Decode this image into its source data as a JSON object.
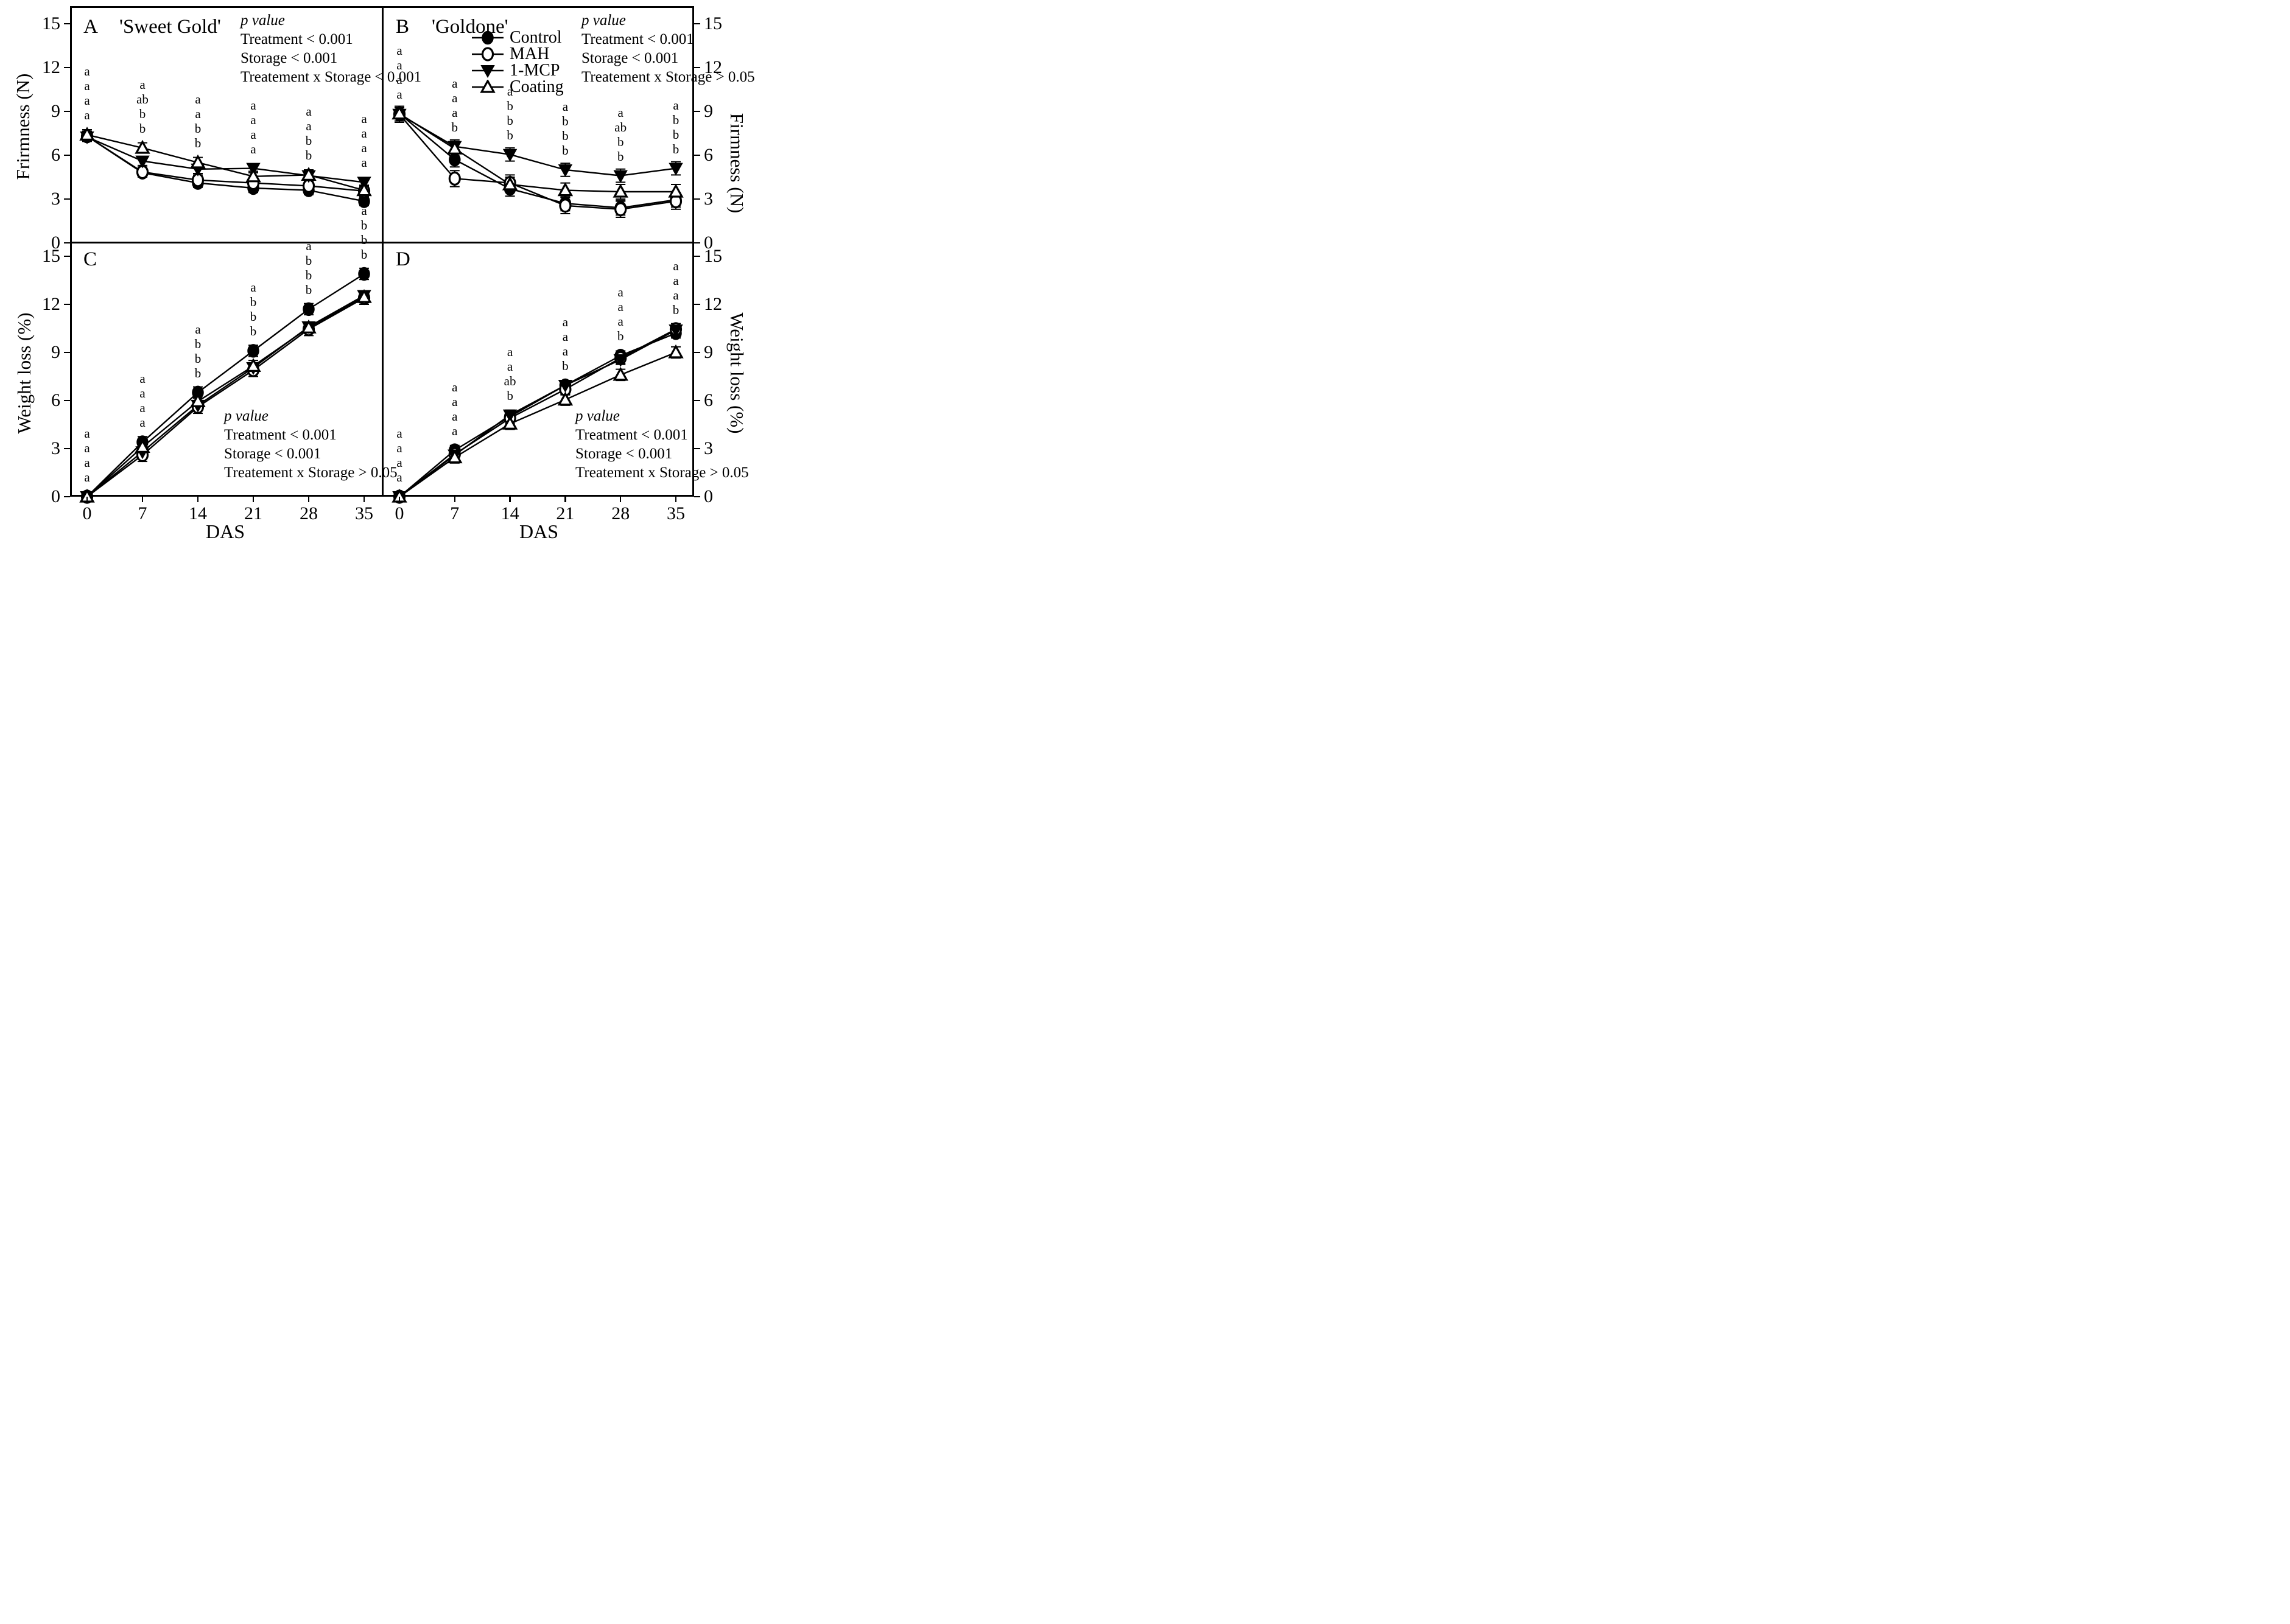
{
  "figure_colors": {
    "foreground": "#000000",
    "background": "#ffffff"
  },
  "axis_titles": {
    "left_top": "Frirmness (N)",
    "left_bottom": "Weight loss (%)",
    "right_top": "Firmness (N)",
    "right_bottom": "Weight loss (%)",
    "x_left": "DAS",
    "x_right": "DAS"
  },
  "legend": {
    "position": "top of panel B",
    "items": [
      {
        "label": "Control",
        "marker": "circle-filled"
      },
      {
        "label": "MAH",
        "marker": "circle-open"
      },
      {
        "label": "1-MCP",
        "marker": "triangle-down-filled"
      },
      {
        "label": "Coating",
        "marker": "triangle-up-open"
      }
    ]
  },
  "chart_data": [
    {
      "panel": "A",
      "title": "'Sweet Gold'",
      "type": "line",
      "xlabel": "DAS",
      "ylabel": "Frirmness (N)",
      "ylim": [
        0,
        15
      ],
      "yticks": [
        15,
        12,
        9,
        6,
        3,
        0
      ],
      "x": [
        0,
        7,
        14,
        21,
        28,
        35
      ],
      "grid": false,
      "series": [
        {
          "name": "Control",
          "marker": "circle-filled",
          "values": [
            7.3,
            4.8,
            4.1,
            3.75,
            3.6,
            2.85
          ],
          "err": 0.3
        },
        {
          "name": "MAH",
          "marker": "circle-open",
          "values": [
            7.3,
            4.85,
            4.3,
            4.1,
            3.9,
            3.55
          ],
          "err": 0.35
        },
        {
          "name": "1-MCP",
          "marker": "triangle-down-filled",
          "values": [
            7.25,
            5.6,
            5.05,
            5.1,
            4.6,
            4.15
          ],
          "err": 0.3
        },
        {
          "name": "Coating",
          "marker": "triangle-up-open",
          "values": [
            7.4,
            6.5,
            5.5,
            4.55,
            4.65,
            3.6
          ],
          "err": 0.35
        }
      ],
      "sig_letters": [
        [
          "a",
          "a",
          "a",
          "a"
        ],
        [
          "a",
          "ab",
          "b",
          "b"
        ],
        [
          "a",
          "a",
          "b",
          "b"
        ],
        [
          "a",
          "a",
          "a",
          "a"
        ],
        [
          "a",
          "a",
          "b",
          "b"
        ],
        [
          "a",
          "a",
          "a",
          "a"
        ]
      ],
      "p_block": {
        "heading": "p value",
        "lines": [
          "Treatment < 0.001",
          "Storage < 0.001",
          "Treatement x Storage  < 0.001"
        ]
      }
    },
    {
      "panel": "B",
      "title": "'Goldone'",
      "type": "line",
      "xlabel": "DAS",
      "ylabel": "Firmness (N)",
      "ylim": [
        0,
        15
      ],
      "yticks": [
        15,
        12,
        9,
        6,
        3,
        0
      ],
      "x": [
        0,
        7,
        14,
        21,
        28,
        35
      ],
      "grid": false,
      "series": [
        {
          "name": "Control",
          "marker": "circle-filled",
          "values": [
            8.85,
            5.7,
            3.7,
            2.7,
            2.4,
            2.95
          ],
          "err": 0.5
        },
        {
          "name": "MAH",
          "marker": "circle-open",
          "values": [
            8.8,
            4.4,
            4.1,
            2.55,
            2.3,
            2.85
          ],
          "err": 0.55
        },
        {
          "name": "1-MCP",
          "marker": "triangle-down-filled",
          "values": [
            8.8,
            6.6,
            6.05,
            5.0,
            4.6,
            5.1
          ],
          "err": 0.45
        },
        {
          "name": "Coating",
          "marker": "triangle-up-open",
          "values": [
            8.85,
            6.45,
            4.0,
            3.6,
            3.5,
            3.5
          ],
          "err": 0.5
        }
      ],
      "sig_letters": [
        [
          "a",
          "a",
          "a",
          "a"
        ],
        [
          "a",
          "a",
          "a",
          "b"
        ],
        [
          "a",
          "b",
          "b",
          "b"
        ],
        [
          "a",
          "b",
          "b",
          "b"
        ],
        [
          "a",
          "ab",
          "b",
          "b"
        ],
        [
          "a",
          "b",
          "b",
          "b"
        ]
      ],
      "p_block": {
        "heading": "p value",
        "lines": [
          "Treatment < 0.001",
          "Storage < 0.001",
          "Treatement x Storage > 0.05"
        ]
      }
    },
    {
      "panel": "C",
      "title": "",
      "type": "line",
      "xlabel": "DAS",
      "ylabel": "Weight loss (%)",
      "ylim": [
        0,
        15
      ],
      "yticks": [
        15,
        12,
        9,
        6,
        3,
        0
      ],
      "x": [
        0,
        7,
        14,
        21,
        28,
        35
      ],
      "grid": false,
      "series": [
        {
          "name": "Control",
          "marker": "circle-filled",
          "values": [
            0,
            3.4,
            6.5,
            9.1,
            11.7,
            13.9
          ],
          "err": 0.35
        },
        {
          "name": "MAH",
          "marker": "circle-open",
          "values": [
            0,
            2.6,
            5.6,
            7.9,
            10.45,
            12.4
          ],
          "err": 0.4
        },
        {
          "name": "1-MCP",
          "marker": "triangle-down-filled",
          "values": [
            0,
            2.8,
            5.7,
            8.05,
            10.6,
            12.55
          ],
          "err": 0.3
        },
        {
          "name": "Coating",
          "marker": "triangle-up-open",
          "values": [
            0,
            3.1,
            5.95,
            8.15,
            10.55,
            12.45
          ],
          "err": 0.35
        }
      ],
      "sig_letters": [
        [
          "a",
          "a",
          "a",
          "a"
        ],
        [
          "a",
          "a",
          "a",
          "a"
        ],
        [
          "a",
          "b",
          "b",
          "b"
        ],
        [
          "a",
          "b",
          "b",
          "b"
        ],
        [
          "a",
          "b",
          "b",
          "b"
        ],
        [
          "a",
          "b",
          "b",
          "b"
        ]
      ],
      "p_block": {
        "heading": "p value",
        "lines": [
          "Treatment <  0.001",
          "Storage < 0.001",
          "Treatement x Storage > 0.05"
        ]
      }
    },
    {
      "panel": "D",
      "title": "",
      "type": "line",
      "xlabel": "DAS",
      "ylabel": "Weight loss (%)",
      "ylim": [
        0,
        15
      ],
      "yticks": [
        15,
        12,
        9,
        6,
        3,
        0
      ],
      "x": [
        0,
        7,
        14,
        21,
        28,
        35
      ],
      "grid": false,
      "series": [
        {
          "name": "Control",
          "marker": "circle-filled",
          "values": [
            0,
            2.9,
            5.0,
            6.95,
            8.8,
            10.2
          ],
          "err": 0.3
        },
        {
          "name": "MAH",
          "marker": "circle-open",
          "values": [
            0,
            2.65,
            4.9,
            6.7,
            8.65,
            10.45
          ],
          "err": 0.35
        },
        {
          "name": "1-MCP",
          "marker": "triangle-down-filled",
          "values": [
            0,
            2.6,
            5.1,
            6.95,
            8.55,
            10.4
          ],
          "err": 0.3
        },
        {
          "name": "Coating",
          "marker": "triangle-up-open",
          "values": [
            0,
            2.45,
            4.55,
            6.05,
            7.6,
            9.0
          ],
          "err": 0.35
        }
      ],
      "sig_letters": [
        [
          "a",
          "a",
          "a",
          "a"
        ],
        [
          "a",
          "a",
          "a",
          "a"
        ],
        [
          "a",
          "a",
          "ab",
          "b"
        ],
        [
          "a",
          "a",
          "a",
          "b"
        ],
        [
          "a",
          "a",
          "a",
          "b"
        ],
        [
          "a",
          "a",
          "a",
          "b"
        ]
      ],
      "p_block": {
        "heading": "p value",
        "lines": [
          "Treatment < 0.001",
          "Storage < 0.001",
          "Treatement x Storage > 0.05"
        ]
      }
    }
  ],
  "panel_labels": {
    "A": "A",
    "B": "B",
    "C": "C",
    "D": "D"
  },
  "xtick_labels": [
    "0",
    "7",
    "14",
    "21",
    "28",
    "35"
  ]
}
